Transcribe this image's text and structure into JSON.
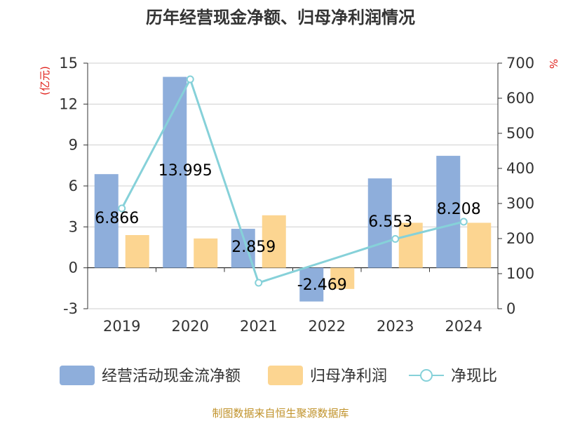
{
  "chart_data": {
    "type": "bar",
    "title": "历年经营现金净额、归母净利润情况",
    "categories": [
      "2019",
      "2020",
      "2021",
      "2022",
      "2023",
      "2024"
    ],
    "y_left": {
      "unit": "(亿元)",
      "ylim": [
        -3,
        15
      ],
      "ticks": [
        "15",
        "12",
        "9",
        "6",
        "3",
        "0",
        "-3"
      ],
      "tick_values": [
        15,
        12,
        9,
        6,
        3,
        0,
        -3
      ]
    },
    "y_right": {
      "unit": "%",
      "ylim": [
        0,
        700
      ],
      "ticks": [
        "700",
        "600",
        "500",
        "400",
        "300",
        "200",
        "100",
        "0"
      ],
      "tick_values": [
        700,
        600,
        500,
        400,
        300,
        200,
        100,
        0
      ]
    },
    "grid": true,
    "legend_position": "bottom",
    "series": [
      {
        "name": "经营活动现金流净额",
        "type": "bar",
        "axis": "left",
        "color": "#8eaedb",
        "values": [
          6.866,
          13.995,
          2.859,
          -2.469,
          6.553,
          8.208
        ],
        "labels": [
          "6.866",
          "13.995",
          "2.859",
          "-2.469",
          "6.553",
          "8.208"
        ]
      },
      {
        "name": "归母净利润",
        "type": "bar",
        "axis": "left",
        "color": "#fcd591",
        "values": [
          2.4,
          2.15,
          3.85,
          -1.55,
          3.3,
          3.3
        ]
      },
      {
        "name": "净现比",
        "type": "line",
        "axis": "right",
        "color": "#86d1d9",
        "values": [
          286,
          654,
          74,
          null,
          199,
          248
        ]
      }
    ]
  },
  "source": "制图数据来自恒生聚源数据库"
}
